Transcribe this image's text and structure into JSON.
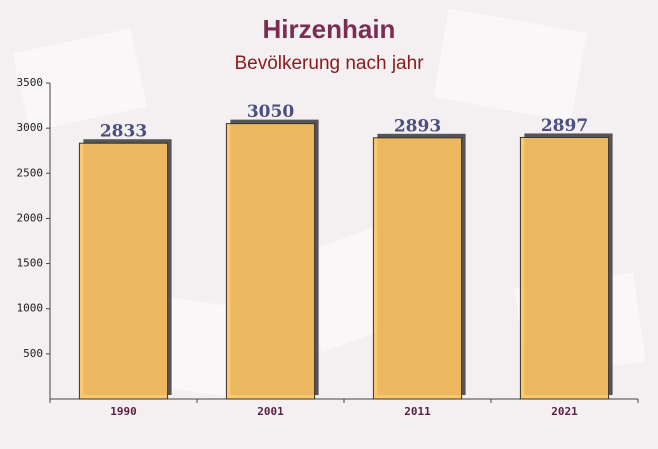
{
  "chart_data": {
    "type": "bar",
    "title": "Hirzenhain",
    "subtitle": "Bevölkerung nach jahr",
    "categories": [
      "1990",
      "2001",
      "2011",
      "2021"
    ],
    "values": [
      2833,
      3050,
      2893,
      2897
    ],
    "color": "#fcc260",
    "ylim": [
      0,
      3500
    ],
    "yticks": [
      500,
      1000,
      1500,
      2000,
      2500,
      3000,
      3500
    ]
  }
}
